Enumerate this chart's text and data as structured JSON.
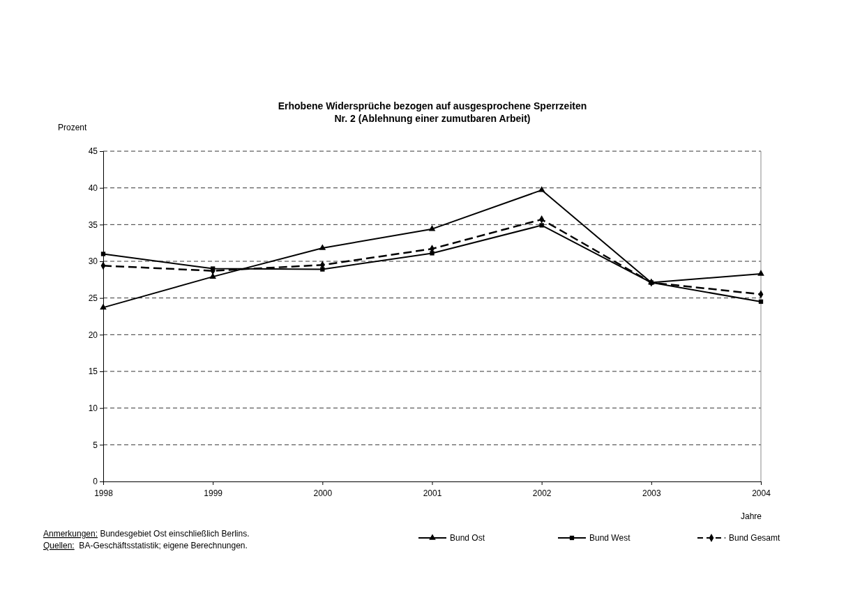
{
  "chart_data": {
    "type": "line",
    "title": "Erhobene Widersprüche bezogen auf ausgesprochene Sperrzeiten",
    "subtitle": "Nr. 2 (Ablehnung einer zumutbaren Arbeit)",
    "ylabel": "Prozent",
    "xlabel": "Jahre",
    "x": [
      1998,
      1999,
      2000,
      2001,
      2002,
      2003,
      2004
    ],
    "xlim": [
      1998,
      2004
    ],
    "xticks": [
      1998,
      1999,
      2000,
      2001,
      2002,
      2003,
      2004
    ],
    "ylim": [
      0,
      45
    ],
    "yticks": [
      0,
      5,
      10,
      15,
      20,
      25,
      30,
      35,
      40,
      45
    ],
    "grid": "y",
    "legend": "bottom",
    "series": [
      {
        "name": "Bund Ost",
        "color": "#000000",
        "marker": "triangle",
        "line_style": "solid",
        "values": [
          23.7,
          27.9,
          31.8,
          34.4,
          39.7,
          27.1,
          28.3
        ]
      },
      {
        "name": "Bund West",
        "color": "#000000",
        "marker": "square",
        "line_style": "solid",
        "values": [
          31.0,
          29.0,
          28.9,
          31.1,
          34.9,
          27.1,
          24.5
        ]
      },
      {
        "name": "Bund Gesamt",
        "color": "#000000",
        "marker": "diamond",
        "line_style": "dashed",
        "values": [
          29.4,
          28.7,
          29.5,
          31.7,
          35.7,
          27.1,
          25.5
        ]
      }
    ],
    "annotations": [
      "Anmerkungen: Bundesgebiet Ost einschließlich Berlins.",
      "Quellen:  BA-Geschäftsstatistik; eigene Berechnungen."
    ]
  }
}
